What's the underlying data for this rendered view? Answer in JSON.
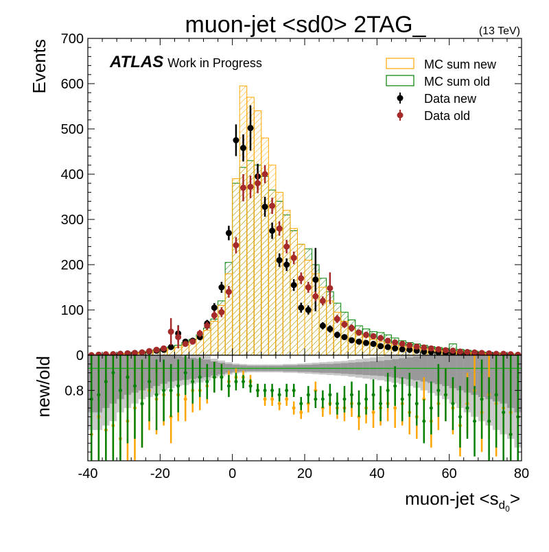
{
  "title": "muon-jet <sd0> 2TAG_",
  "energy_label": "(13 TeV)",
  "atlas_label": "ATLAS",
  "atlas_sublabel": "Work in Progress",
  "legend": {
    "mc_new": "MC sum new",
    "mc_old": "MC sum old",
    "data_new": "Data new",
    "data_old": "Data old"
  },
  "colors": {
    "mc_new": "#FFA500",
    "mc_old": "#008000",
    "data_new": "#000000",
    "data_old": "#A52A2A",
    "band_dark": "#999999",
    "band_light": "#c8c8c8",
    "ratio_line": "#22aa22"
  },
  "chart_data": {
    "type": "histogram",
    "xlabel_main": "muon-jet <s",
    "xlabel_sub": "d",
    "xlabel_subsub": "0",
    "xlabel_end": ">",
    "ylabel": "Events",
    "ratio_ylabel": "new/old",
    "xlim": [
      -40,
      80
    ],
    "ylim": [
      0,
      700
    ],
    "ratio_ylim": [
      0.64,
      0.88
    ],
    "xticks": [
      "-40",
      "-20",
      "0",
      "20",
      "40",
      "60",
      "80"
    ],
    "xtick_values": [
      -40,
      -20,
      0,
      20,
      40,
      60,
      80
    ],
    "yticks": [
      "0",
      "100",
      "200",
      "300",
      "400",
      "500",
      "600",
      "700"
    ],
    "ytick_values": [
      0,
      100,
      200,
      300,
      400,
      500,
      600,
      700
    ],
    "ratio_yticks": [
      "0.8"
    ],
    "ratio_ytick_values": [
      0.8
    ],
    "bin_edges": [
      -40,
      -38,
      -36,
      -34,
      -32,
      -30,
      -28,
      -26,
      -24,
      -22,
      -20,
      -18,
      -16,
      -14,
      -12,
      -10,
      -8,
      -6,
      -4,
      -2,
      0,
      2,
      4,
      6,
      8,
      10,
      12,
      14,
      16,
      18,
      20,
      22,
      24,
      26,
      28,
      30,
      32,
      34,
      36,
      38,
      40,
      42,
      44,
      46,
      48,
      50,
      52,
      54,
      56,
      58,
      60,
      62,
      64,
      66,
      68,
      70,
      72,
      74,
      76,
      78,
      80
    ],
    "mc_new": [
      1,
      1,
      2,
      2,
      3,
      4,
      5,
      6,
      8,
      10,
      12,
      15,
      18,
      22,
      30,
      40,
      55,
      75,
      110,
      180,
      390,
      595,
      570,
      540,
      480,
      420,
      360,
      320,
      280,
      245,
      210,
      180,
      150,
      120,
      95,
      75,
      58,
      45,
      40,
      35,
      30,
      26,
      22,
      20,
      18,
      16,
      14,
      12,
      10,
      9,
      8,
      7,
      6,
      5,
      4,
      3,
      3,
      2,
      2,
      1
    ],
    "mc_old": [
      1,
      1,
      2,
      2,
      3,
      4,
      5,
      7,
      9,
      12,
      15,
      18,
      22,
      28,
      35,
      45,
      60,
      80,
      120,
      205,
      380,
      415,
      430,
      420,
      395,
      365,
      340,
      310,
      275,
      245,
      235,
      200,
      170,
      140,
      115,
      95,
      78,
      65,
      58,
      52,
      50,
      45,
      38,
      32,
      28,
      25,
      22,
      19,
      17,
      15,
      25,
      13,
      11,
      9,
      7,
      6,
      5,
      4,
      3,
      2
    ],
    "data_new": {
      "x": [
        -39,
        -37,
        -35,
        -33,
        -31,
        -29,
        -27,
        -25,
        -23,
        -21,
        -19,
        -17,
        -15,
        -13,
        -11,
        -9,
        -7,
        -5,
        -3,
        -1,
        1,
        3,
        5,
        7,
        9,
        11,
        13,
        15,
        17,
        19,
        21,
        23,
        25,
        27,
        29,
        31,
        33,
        35,
        37,
        39,
        41,
        43,
        45,
        47,
        49,
        51,
        53,
        55,
        57,
        59,
        61,
        63,
        65,
        67,
        69,
        71,
        73,
        75,
        77,
        79
      ],
      "y": [
        0,
        1,
        1,
        2,
        3,
        4,
        5,
        6,
        8,
        10,
        12,
        18,
        48,
        30,
        32,
        40,
        70,
        105,
        150,
        270,
        475,
        458,
        502,
        395,
        328,
        275,
        210,
        200,
        155,
        105,
        100,
        167,
        65,
        58,
        45,
        40,
        33,
        30,
        27,
        25,
        20,
        18,
        15,
        13,
        12,
        10,
        8,
        7,
        6,
        5,
        5,
        4,
        3,
        3,
        2,
        2,
        1,
        1,
        1,
        0
      ],
      "err": [
        1,
        1,
        1,
        1.5,
        2,
        2,
        2.5,
        3,
        3,
        3.5,
        4,
        5,
        18,
        6,
        6,
        7,
        8,
        10,
        12,
        16,
        35,
        30,
        50,
        28,
        22,
        18,
        15,
        14,
        13,
        11,
        10,
        70,
        8,
        8,
        7,
        6,
        6,
        6,
        5,
        5,
        5,
        4,
        4,
        4,
        3,
        3,
        3,
        3,
        2,
        2,
        2,
        2,
        2,
        2,
        1,
        1,
        1,
        1,
        1,
        1
      ]
    },
    "data_old": {
      "x": [
        -39,
        -37,
        -35,
        -33,
        -31,
        -29,
        -27,
        -25,
        -23,
        -21,
        -19,
        -17,
        -15,
        -13,
        -11,
        -9,
        -7,
        -5,
        -3,
        -1,
        1,
        3,
        5,
        7,
        9,
        11,
        13,
        15,
        17,
        19,
        21,
        23,
        25,
        27,
        29,
        31,
        33,
        35,
        37,
        39,
        41,
        43,
        45,
        47,
        49,
        51,
        53,
        55,
        57,
        59,
        61,
        63,
        65,
        67,
        69,
        71,
        73,
        75,
        77,
        79
      ],
      "y": [
        0,
        1,
        2,
        2,
        3,
        4,
        5,
        6,
        9,
        12,
        15,
        52,
        40,
        25,
        30,
        48,
        65,
        88,
        95,
        140,
        243,
        370,
        372,
        380,
        400,
        330,
        280,
        240,
        215,
        170,
        150,
        130,
        120,
        148,
        80,
        68,
        60,
        50,
        45,
        42,
        38,
        32,
        28,
        25,
        22,
        19,
        17,
        15,
        13,
        11,
        10,
        8,
        7,
        6,
        5,
        4,
        3,
        3,
        2,
        1
      ],
      "err": [
        1,
        1,
        1,
        1.5,
        2,
        2,
        2.5,
        3,
        3,
        3.5,
        4,
        30,
        25,
        6,
        6,
        8,
        9,
        10,
        11,
        13,
        18,
        30,
        25,
        22,
        20,
        18,
        16,
        15,
        14,
        13,
        12,
        11,
        10,
        35,
        9,
        8,
        8,
        7,
        7,
        6,
        6,
        6,
        5,
        5,
        5,
        4,
        4,
        4,
        4,
        3,
        3,
        3,
        3,
        2,
        2,
        2,
        2,
        2,
        1,
        1
      ]
    },
    "ratio_orange": {
      "x": [
        -39,
        -37,
        -35,
        -33,
        -31,
        -29,
        -27,
        -25,
        -23,
        -21,
        -19,
        -17,
        -15,
        -13,
        -11,
        -9,
        -7,
        -5,
        -3,
        -1,
        1,
        3,
        5,
        7,
        9,
        11,
        13,
        15,
        17,
        19,
        21,
        23,
        25,
        27,
        29,
        31,
        33,
        35,
        37,
        39,
        41,
        43,
        45,
        47,
        49,
        51,
        53,
        55,
        57,
        59,
        61,
        63,
        65,
        67,
        69,
        71,
        73,
        75,
        77,
        79
      ],
      "y": [
        0.7,
        0.74,
        0.71,
        0.72,
        0.69,
        0.73,
        0.76,
        0.77,
        0.8,
        0.78,
        0.79,
        0.74,
        0.79,
        0.78,
        0.8,
        0.8,
        0.81,
        0.83,
        0.83,
        0.82,
        0.83,
        0.83,
        0.82,
        0.8,
        0.78,
        0.78,
        0.77,
        0.78,
        0.76,
        0.75,
        0.77,
        0.8,
        0.76,
        0.77,
        0.76,
        0.76,
        0.77,
        0.74,
        0.76,
        0.75,
        0.76,
        0.77,
        0.76,
        0.77,
        0.75,
        0.74,
        0.78,
        0.73,
        0.77,
        0.79,
        0.76,
        0.72,
        0.77,
        0.8,
        0.75,
        0.79,
        0.77,
        0.76,
        0.75,
        0.74
      ],
      "err": [
        0.3,
        0.3,
        0.25,
        0.2,
        0.18,
        0.15,
        0.12,
        0.1,
        0.09,
        0.08,
        0.07,
        0.06,
        0.06,
        0.05,
        0.05,
        0.045,
        0.04,
        0.035,
        0.03,
        0.025,
        0.02,
        0.015,
        0.015,
        0.015,
        0.015,
        0.015,
        0.015,
        0.015,
        0.015,
        0.015,
        0.02,
        0.02,
        0.02,
        0.025,
        0.025,
        0.03,
        0.03,
        0.03,
        0.035,
        0.035,
        0.04,
        0.04,
        0.045,
        0.05,
        0.05,
        0.05,
        0.05,
        0.06,
        0.06,
        0.06,
        0.06,
        0.07,
        0.07,
        0.08,
        0.09,
        0.1,
        0.12,
        0.15,
        0.2,
        0.25
      ]
    },
    "ratio_green": {
      "x": [
        -39,
        -37,
        -35,
        -33,
        -31,
        -29,
        -27,
        -25,
        -23,
        -21,
        -19,
        -17,
        -15,
        -13,
        -11,
        -9,
        -7,
        -5,
        -3,
        -1,
        1,
        3,
        5,
        7,
        9,
        11,
        13,
        15,
        17,
        19,
        21,
        23,
        25,
        27,
        29,
        31,
        33,
        35,
        37,
        39,
        41,
        43,
        45,
        47,
        49,
        51,
        53,
        55,
        57,
        59,
        61,
        63,
        65,
        67,
        69,
        71,
        73,
        75,
        77,
        79
      ],
      "y": [
        0.78,
        0.79,
        0.82,
        0.84,
        0.8,
        0.83,
        0.81,
        0.77,
        0.82,
        0.79,
        0.8,
        0.8,
        0.81,
        0.84,
        0.82,
        0.83,
        0.82,
        0.83,
        0.83,
        0.81,
        0.82,
        0.82,
        0.81,
        0.8,
        0.8,
        0.8,
        0.79,
        0.8,
        0.8,
        0.77,
        0.79,
        0.78,
        0.78,
        0.79,
        0.77,
        0.78,
        0.79,
        0.77,
        0.78,
        0.79,
        0.77,
        0.8,
        0.81,
        0.78,
        0.79,
        0.77,
        0.73,
        0.76,
        0.8,
        0.79,
        0.77,
        0.74,
        0.76,
        0.73,
        0.78,
        0.73,
        0.79,
        0.75,
        0.7,
        0.74
      ],
      "err": [
        0.3,
        0.3,
        0.25,
        0.2,
        0.18,
        0.15,
        0.12,
        0.1,
        0.09,
        0.08,
        0.07,
        0.06,
        0.06,
        0.05,
        0.05,
        0.045,
        0.04,
        0.035,
        0.03,
        0.025,
        0.02,
        0.015,
        0.015,
        0.015,
        0.015,
        0.015,
        0.015,
        0.015,
        0.015,
        0.015,
        0.02,
        0.02,
        0.02,
        0.025,
        0.025,
        0.03,
        0.03,
        0.03,
        0.035,
        0.035,
        0.04,
        0.04,
        0.045,
        0.05,
        0.05,
        0.05,
        0.05,
        0.06,
        0.06,
        0.06,
        0.06,
        0.07,
        0.07,
        0.08,
        0.09,
        0.1,
        0.12,
        0.15,
        0.2,
        0.25
      ]
    },
    "ratio_band_dark": [
      0.1,
      0.1,
      0.09,
      0.08,
      0.07,
      0.06,
      0.055,
      0.05,
      0.045,
      0.04,
      0.035,
      0.03,
      0.028,
      0.026,
      0.024,
      0.022,
      0.02,
      0.016,
      0.013,
      0.01,
      0.008,
      0.007,
      0.006,
      0.006,
      0.006,
      0.006,
      0.006,
      0.007,
      0.007,
      0.008,
      0.008,
      0.009,
      0.01,
      0.01,
      0.011,
      0.012,
      0.013,
      0.014,
      0.015,
      0.016,
      0.017,
      0.019,
      0.021,
      0.023,
      0.025,
      0.027,
      0.03,
      0.033,
      0.036,
      0.04,
      0.045,
      0.05,
      0.055,
      0.06,
      0.065,
      0.07,
      0.075,
      0.08,
      0.09,
      0.1
    ],
    "ratio_band_light": [
      0.14,
      0.14,
      0.13,
      0.12,
      0.1,
      0.09,
      0.08,
      0.07,
      0.065,
      0.06,
      0.05,
      0.045,
      0.04,
      0.038,
      0.035,
      0.032,
      0.028,
      0.022,
      0.018,
      0.014,
      0.011,
      0.01,
      0.009,
      0.009,
      0.009,
      0.009,
      0.009,
      0.01,
      0.01,
      0.011,
      0.012,
      0.013,
      0.014,
      0.015,
      0.016,
      0.017,
      0.019,
      0.021,
      0.023,
      0.025,
      0.027,
      0.03,
      0.033,
      0.036,
      0.04,
      0.044,
      0.05,
      0.056,
      0.062,
      0.07,
      0.08,
      0.09,
      0.1,
      0.11,
      0.12,
      0.13,
      0.14,
      0.15,
      0.16,
      0.18
    ]
  }
}
